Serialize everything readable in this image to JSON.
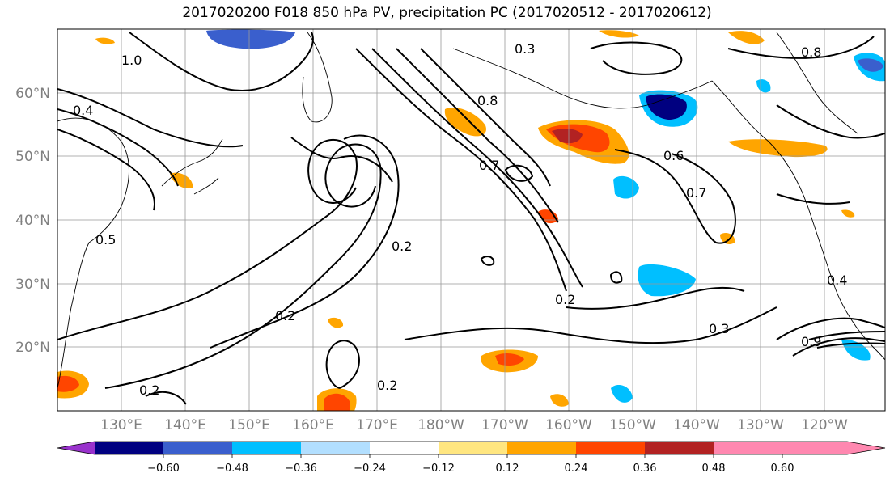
{
  "title": "2017020200 F018 850 hPa PV, precipitation PC (2017020512 - 2017020612)",
  "lat_labels": [
    "60°N",
    "50°N",
    "40°N",
    "30°N",
    "20°N"
  ],
  "lon_labels": [
    "130°E",
    "140°E",
    "150°E",
    "160°E",
    "170°E",
    "180°W",
    "170°W",
    "160°W",
    "150°W",
    "140°W",
    "130°W",
    "120°W"
  ],
  "colorbar": {
    "colors": [
      "#9932CC",
      "#000080",
      "#3A5FCD",
      "#00BFFF",
      "#B2DFFF",
      "#FFFFFF",
      "#FFE680",
      "#FFA500",
      "#FF4500",
      "#B22222",
      "#FF88B0"
    ],
    "tick_labels": [
      "−0.60",
      "−0.48",
      "−0.36",
      "−0.24",
      "−0.12",
      "0.12",
      "0.24",
      "0.36",
      "0.48",
      "0.60"
    ]
  },
  "contour_labels": [
    "0.2",
    "0.2",
    "0.2",
    "0.2",
    "0.2",
    "0.3",
    "0.3",
    "0.4",
    "0.4",
    "0.5",
    "0.6",
    "0.7",
    "0.7",
    "0.8",
    "0.8",
    "0.9",
    "1.0"
  ]
}
